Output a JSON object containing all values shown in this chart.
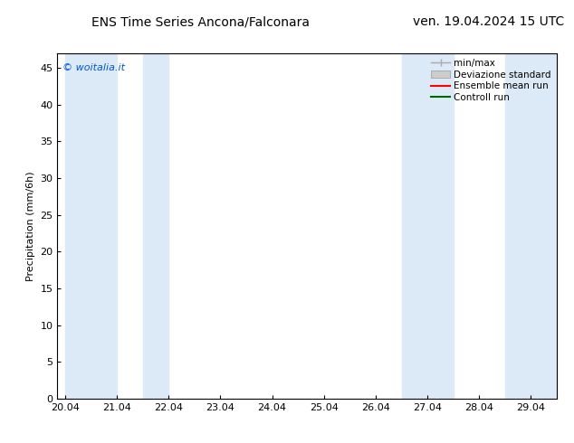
{
  "title_left": "ENS Time Series Ancona/Falconara",
  "title_right": "ven. 19.04.2024 15 UTC",
  "ylabel": "Precipitation (mm/6h)",
  "watermark": "© woitalia.it",
  "watermark_color": "#0055cc",
  "ylim": [
    0,
    47
  ],
  "yticks": [
    0,
    5,
    10,
    15,
    20,
    25,
    30,
    35,
    40,
    45
  ],
  "xtick_labels": [
    "20.04",
    "21.04",
    "22.04",
    "23.04",
    "24.04",
    "25.04",
    "26.04",
    "27.04",
    "28.04",
    "29.04"
  ],
  "xtick_positions": [
    0,
    1,
    2,
    3,
    4,
    5,
    6,
    7,
    8,
    9
  ],
  "shaded_bands": [
    {
      "xmin": 0.0,
      "xmax": 1.0,
      "color": "#dce9f7"
    },
    {
      "xmin": 1.5,
      "xmax": 2.0,
      "color": "#dce9f7"
    },
    {
      "xmin": 6.5,
      "xmax": 7.5,
      "color": "#dce9f7"
    },
    {
      "xmin": 8.5,
      "xmax": 9.5,
      "color": "#dce9f7"
    }
  ],
  "legend_entries": [
    {
      "label": "min/max",
      "color": "#aaaaaa",
      "lw": 1.0,
      "style": "minmax"
    },
    {
      "label": "Deviazione standard",
      "color": "#cccccc",
      "lw": 6,
      "style": "std"
    },
    {
      "label": "Ensemble mean run",
      "color": "#ff0000",
      "lw": 1.5,
      "style": "line"
    },
    {
      "label": "Controll run",
      "color": "#006600",
      "lw": 1.5,
      "style": "line"
    }
  ],
  "title_fontsize": 10,
  "tick_fontsize": 8,
  "ylabel_fontsize": 8,
  "legend_fontsize": 7.5,
  "background_color": "#ffffff",
  "plot_bg_color": "#ffffff"
}
